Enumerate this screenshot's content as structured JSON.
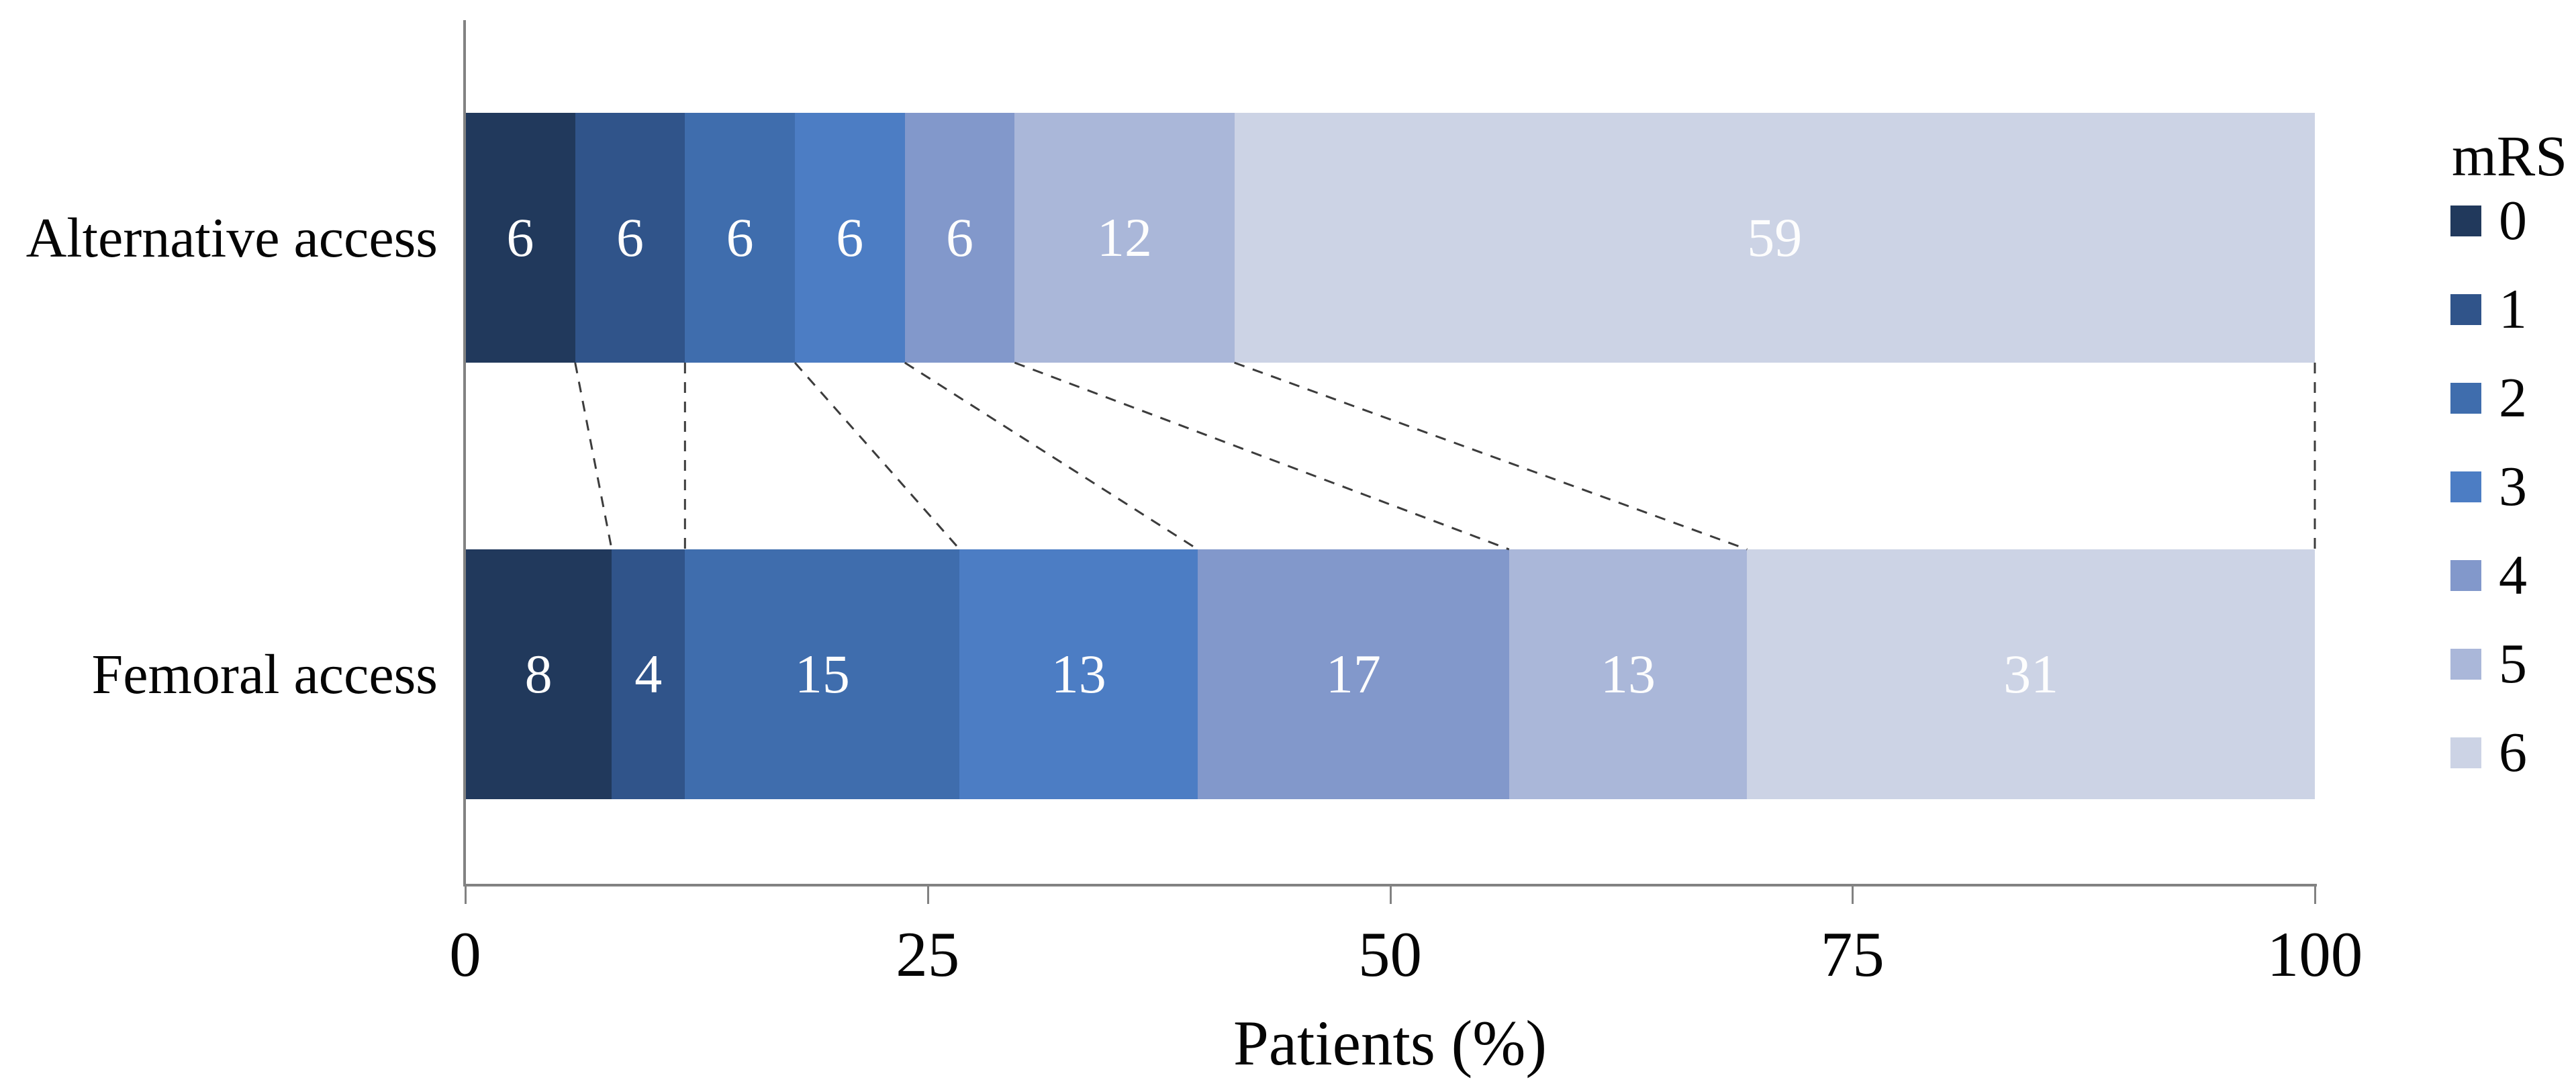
{
  "chart_data": {
    "type": "bar",
    "orientation": "horizontal",
    "stacked": true,
    "normalized": true,
    "title": "",
    "xlabel": "Patients (%)",
    "ylabel": "",
    "x_ticks": [
      0,
      25,
      50,
      75,
      100
    ],
    "xlim": [
      0,
      100
    ],
    "grid": false,
    "categories": [
      "Alternative access",
      "Femoral access"
    ],
    "series": [
      {
        "name": "0",
        "color": "#21395c",
        "values": [
          6,
          8
        ]
      },
      {
        "name": "1",
        "color": "#30548a",
        "values": [
          6,
          4
        ]
      },
      {
        "name": "2",
        "color": "#3f6dad",
        "values": [
          6,
          15
        ]
      },
      {
        "name": "3",
        "color": "#4c7dc4",
        "values": [
          6,
          13
        ]
      },
      {
        "name": "4",
        "color": "#8298cb",
        "values": [
          6,
          17
        ]
      },
      {
        "name": "5",
        "color": "#aab7d9",
        "values": [
          12,
          13
        ]
      },
      {
        "name": "6",
        "color": "#ccd3e5",
        "values": [
          59,
          31
        ]
      }
    ],
    "legend": {
      "title": "mRS",
      "labels": [
        "0",
        "1",
        "2",
        "3",
        "4",
        "5",
        "6"
      ],
      "position": "right"
    },
    "annotations": {
      "connector_style": "dashed lines linking cumulative segment boundaries of the two bars"
    }
  }
}
